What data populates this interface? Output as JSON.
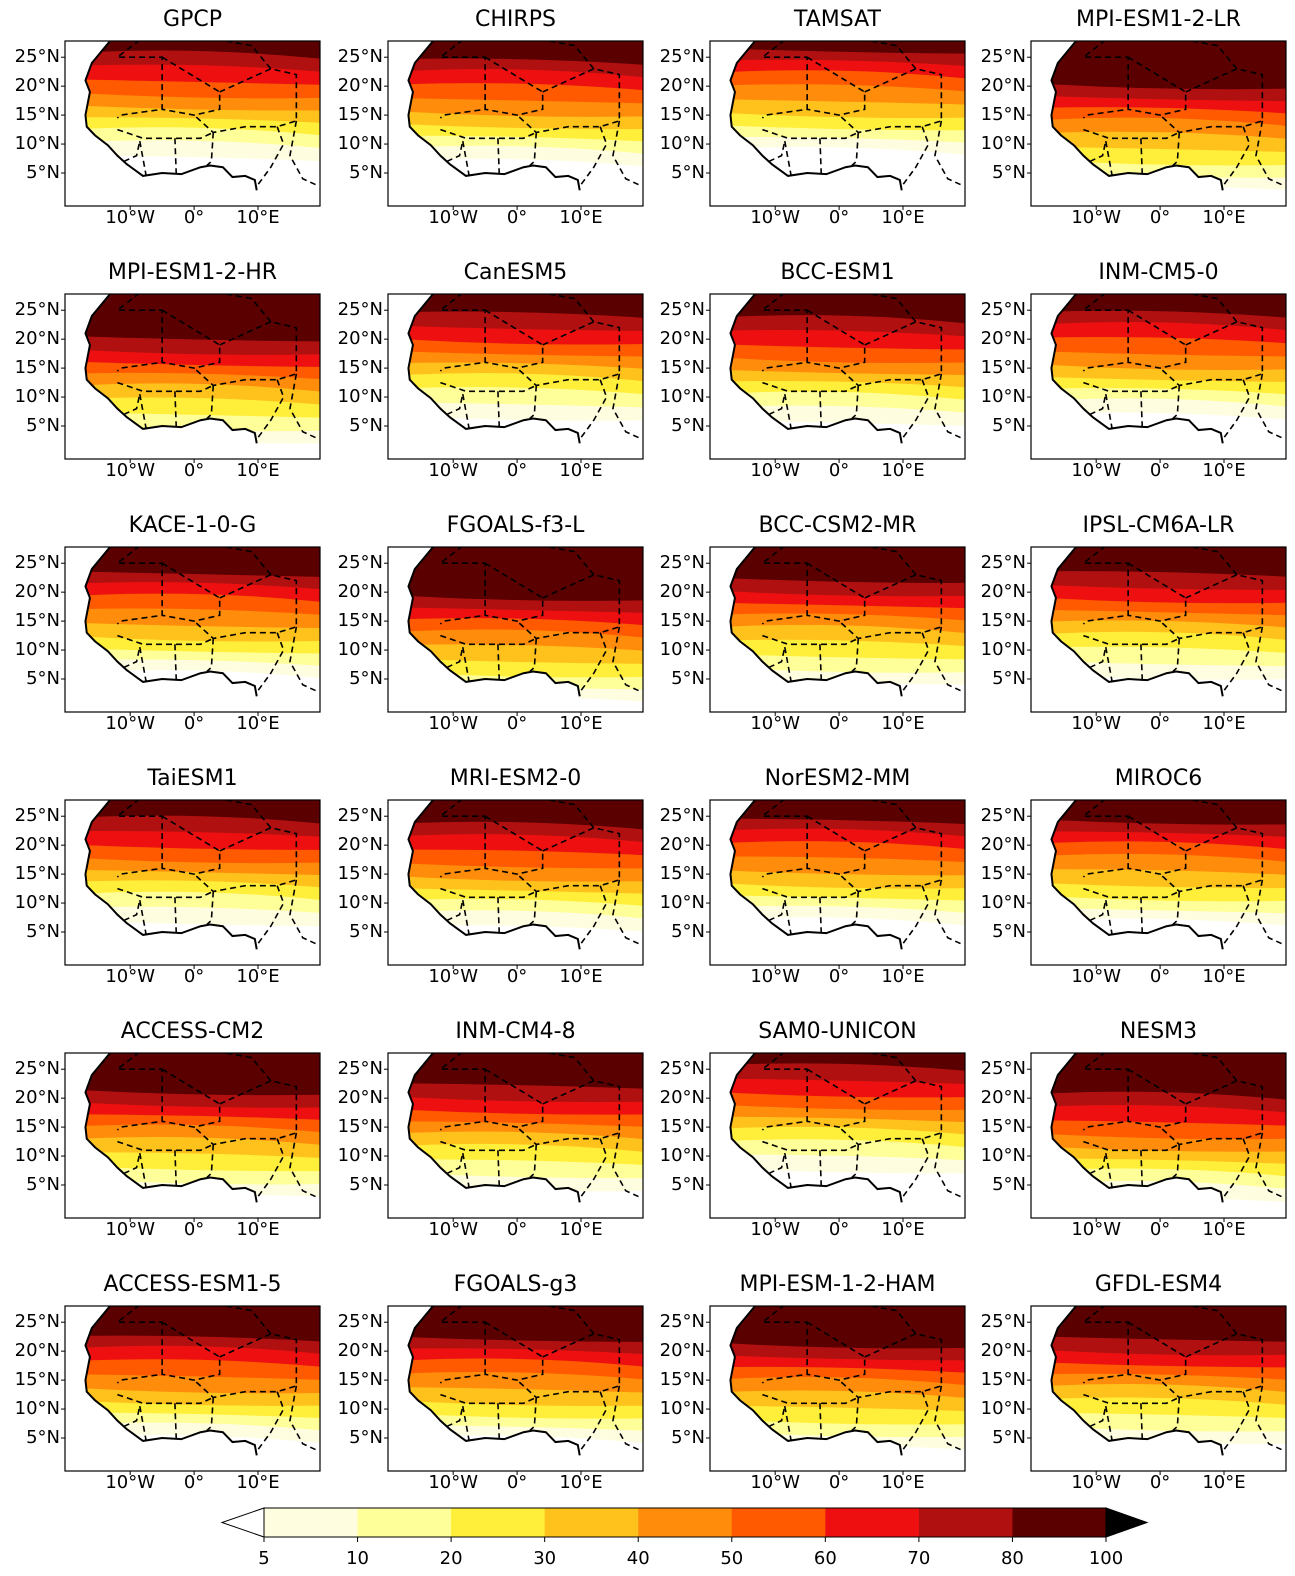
{
  "panels": [
    {
      "title": "GPCP"
    },
    {
      "title": "CHIRPS"
    },
    {
      "title": "TAMSAT"
    },
    {
      "title": "MPI-ESM1-2-LR"
    },
    {
      "title": "MPI-ESM1-2-HR"
    },
    {
      "title": "CanESM5"
    },
    {
      "title": "BCC-ESM1"
    },
    {
      "title": "INM-CM5-0"
    },
    {
      "title": "KACE-1-0-G"
    },
    {
      "title": "FGOALS-f3-L"
    },
    {
      "title": "BCC-CSM2-MR"
    },
    {
      "title": "IPSL-CM6A-LR"
    },
    {
      "title": "TaiESM1"
    },
    {
      "title": "MRI-ESM2-0"
    },
    {
      "title": "NorESM2-MM"
    },
    {
      "title": "MIROC6"
    },
    {
      "title": "ACCESS-CM2"
    },
    {
      "title": "INM-CM4-8"
    },
    {
      "title": "SAM0-UNICON"
    },
    {
      "title": "NESM3"
    },
    {
      "title": "ACCESS-ESM1-5"
    },
    {
      "title": "FGOALS-g3"
    },
    {
      "title": "MPI-ESM-1-2-HAM"
    },
    {
      "title": "GFDL-ESM4"
    }
  ],
  "map_axes": {
    "xlim": [
      -20.2,
      19.7
    ],
    "ylim": [
      -0.7,
      27.8
    ],
    "xticks": [
      {
        "value": -10,
        "label": "10°W"
      },
      {
        "value": 0,
        "label": "0°"
      },
      {
        "value": 10,
        "label": "10°E"
      }
    ],
    "yticks": [
      {
        "value": 25,
        "label": "25°N"
      },
      {
        "value": 20,
        "label": "20°N"
      },
      {
        "value": 15,
        "label": "15°N"
      },
      {
        "value": 10,
        "label": "10°N"
      },
      {
        "value": 5,
        "label": "5°N"
      }
    ]
  },
  "colorbar": {
    "levels": [
      5,
      10,
      20,
      30,
      40,
      50,
      60,
      70,
      80,
      100
    ],
    "colors": [
      "#fffde0",
      "#ffff99",
      "#ffef3a",
      "#ffc21d",
      "#ff8c0a",
      "#ff5a00",
      "#ee1010",
      "#b01010",
      "#5a0000"
    ],
    "under_color": "#ffffff",
    "over_color": "#000000"
  }
}
